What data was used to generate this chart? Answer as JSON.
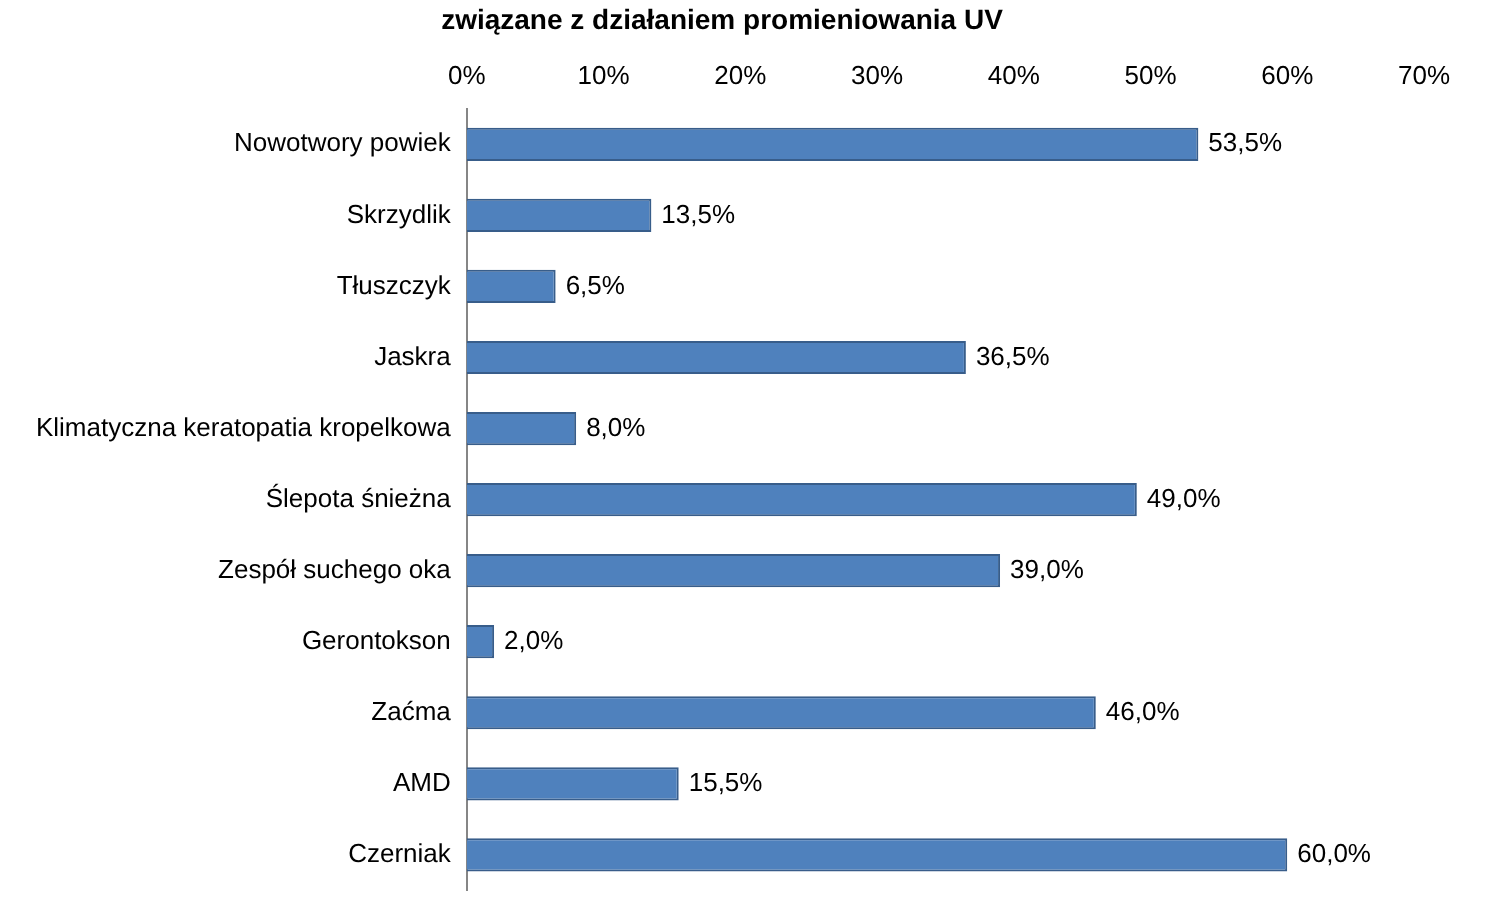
{
  "chart_data": {
    "type": "bar",
    "orientation": "horizontal",
    "title": "związane z działaniem promieniowania UV",
    "categories": [
      "Nowotwory powiek",
      "Skrzydlik",
      "Tłuszczyk",
      "Jaskra",
      "Klimatyczna keratopatia kropelkowa",
      "Ślepota śnieżna",
      "Zespół suchego oka",
      "Gerontokson",
      "Zaćma",
      "AMD",
      "Czerniak"
    ],
    "values": [
      53.5,
      13.5,
      6.5,
      36.5,
      8.0,
      49.0,
      39.0,
      2.0,
      46.0,
      15.5,
      60.0
    ],
    "value_labels": [
      "53,5%",
      "13,5%",
      "6,5%",
      "36,5%",
      "8,0%",
      "49,0%",
      "39,0%",
      "2,0%",
      "46,0%",
      "15,5%",
      "60,0%"
    ],
    "color": "#4f81bd",
    "xlim": [
      0,
      70
    ],
    "xticks": [
      {
        "value": 0,
        "label": "0%"
      },
      {
        "value": 10,
        "label": "10%"
      },
      {
        "value": 20,
        "label": "20%"
      },
      {
        "value": 30,
        "label": "30%"
      },
      {
        "value": 40,
        "label": "40%"
      },
      {
        "value": 50,
        "label": "50%"
      },
      {
        "value": 60,
        "label": "60%"
      },
      {
        "value": 70,
        "label": "70%"
      }
    ],
    "grid": false,
    "legend": false
  }
}
